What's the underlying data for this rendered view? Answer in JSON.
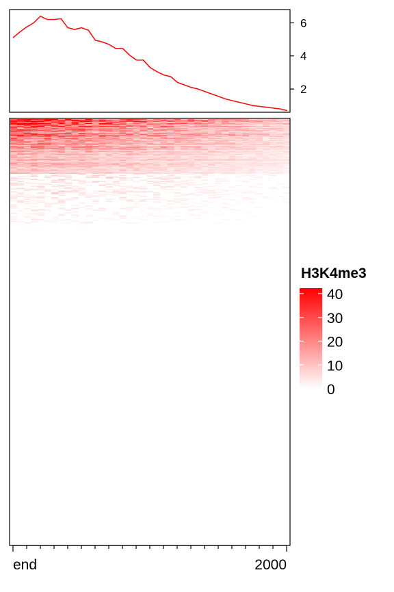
{
  "chart_data": [
    {
      "type": "line",
      "title": "",
      "xlabel": "",
      "ylabel": "",
      "ylim": [
        0.6,
        6.8
      ],
      "y_ticks": [
        "2",
        "4",
        "6"
      ],
      "y_tick_values": [
        2,
        4,
        6
      ],
      "grid": false,
      "color": "#ee1111",
      "x": [
        0,
        1,
        2,
        3,
        4,
        5,
        6,
        7,
        8,
        9,
        10,
        11,
        12,
        13,
        14,
        15,
        16,
        17,
        18,
        19,
        20,
        21,
        22,
        23,
        24,
        25,
        26,
        27,
        28,
        29,
        30,
        31,
        32,
        33,
        34,
        35,
        36,
        37,
        38,
        39,
        40
      ],
      "values": [
        5.1,
        5.45,
        5.75,
        6.0,
        6.4,
        6.2,
        6.2,
        6.25,
        5.7,
        5.6,
        5.7,
        5.55,
        4.95,
        4.85,
        4.7,
        4.45,
        4.45,
        4.05,
        3.75,
        3.75,
        3.3,
        3.05,
        2.85,
        2.75,
        2.4,
        2.25,
        2.1,
        2.0,
        1.85,
        1.7,
        1.55,
        1.4,
        1.3,
        1.2,
        1.1,
        1.0,
        0.95,
        0.9,
        0.85,
        0.8,
        0.7
      ]
    },
    {
      "type": "heatmap",
      "title": "",
      "legend_title": "H3K4me3",
      "legend_ticks": [
        "0",
        "10",
        "20",
        "30",
        "40"
      ],
      "legend_tick_values": [
        0,
        10,
        20,
        30,
        40
      ],
      "value_range": [
        0,
        40
      ],
      "color_low": "#ffffff",
      "color_high": "#ff0000",
      "x_tick_labels": [
        "end",
        "2000"
      ],
      "n_columns": 41,
      "n_rows": 625,
      "nonzero_rows_approx": 145,
      "note_rows_sorted": "descending by mean signal"
    }
  ]
}
